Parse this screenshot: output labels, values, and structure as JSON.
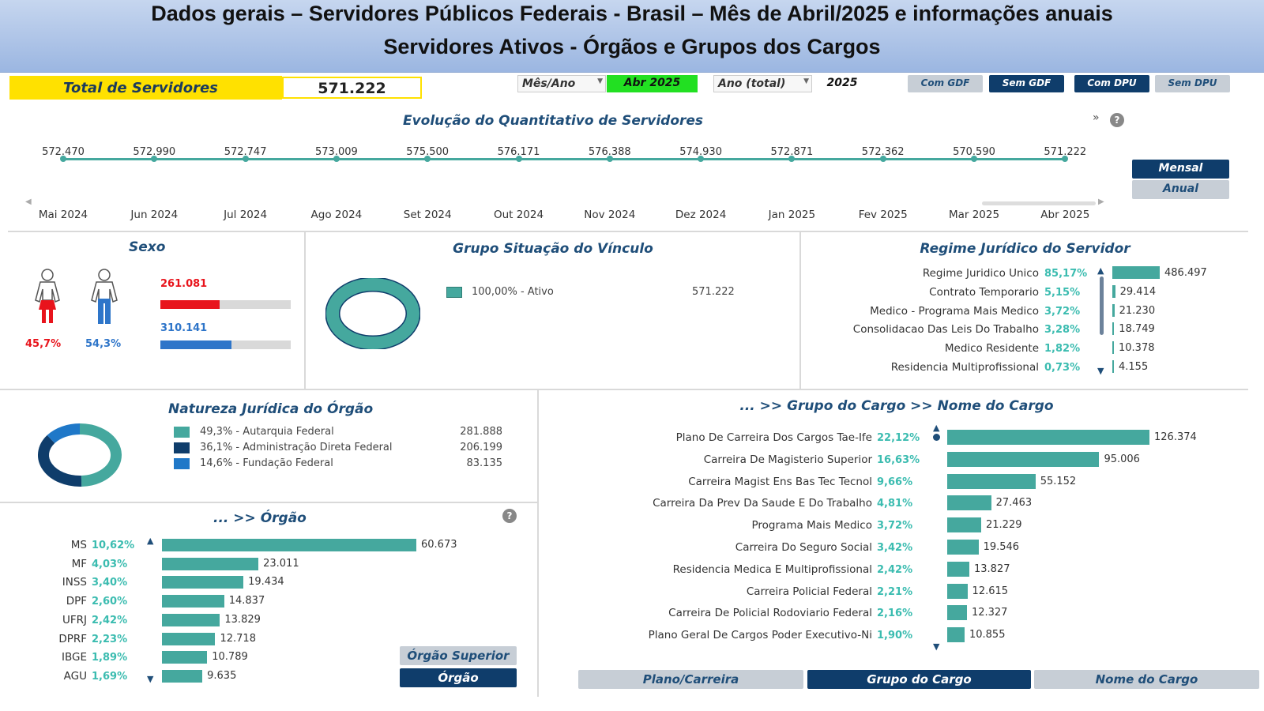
{
  "header": {
    "title1": "Dados gerais – Servidores Públicos Federais - Brasil – Mês de Abril/2025 e informações anuais",
    "title2": "Servidores Ativos - Órgãos e Grupos dos Cargos"
  },
  "total": {
    "label": "Total de Servidores",
    "value": "571.222"
  },
  "filters": {
    "mes_ano_label": "Mês/Ano",
    "mes_ano_value": "Abr 2025",
    "ano_label": "Ano (total)",
    "ano_value": "2025"
  },
  "toggles": {
    "com_gdf": "Com GDF",
    "sem_gdf": "Sem GDF",
    "com_dpu": "Com DPU",
    "sem_dpu": "Sem DPU"
  },
  "evolucao": {
    "title": "Evolução do Quantitativo de Servidores",
    "more_icon": "»",
    "help_icon": "?",
    "mensal": "Mensal",
    "anual": "Anual",
    "months": [
      "Mai 2024",
      "Jun 2024",
      "Jul 2024",
      "Ago 2024",
      "Set 2024",
      "Out 2024",
      "Nov 2024",
      "Dez 2024",
      "Jan 2025",
      "Fev 2025",
      "Mar 2025",
      "Abr 2025"
    ],
    "values": [
      "572.470",
      "572.990",
      "572.747",
      "573.009",
      "575.500",
      "576.171",
      "576.388",
      "574.930",
      "572.871",
      "572.362",
      "570.590",
      "571.222"
    ]
  },
  "sexo": {
    "title": "Sexo",
    "female_value": "261.081",
    "male_value": "310.141",
    "female_pct": "45,7%",
    "male_pct": "54,3%",
    "female_fill": 0.457,
    "male_fill": 0.543,
    "female_color": "#e8141c",
    "male_color": "#2e75c9"
  },
  "vinculo": {
    "title": "Grupo Situação do Vínculo",
    "legend": "100,00% - Ativo",
    "value": "571.222"
  },
  "regime": {
    "title": "Regime Jurídico do Servidor",
    "rows": [
      {
        "label": "Regime Juridico Unico",
        "pct": "85,17%",
        "value": "486.497",
        "num": 486497
      },
      {
        "label": "Contrato Temporario",
        "pct": "5,15%",
        "value": "29.414",
        "num": 29414
      },
      {
        "label": "Medico - Programa Mais Medico",
        "pct": "3,72%",
        "value": "21.230",
        "num": 21230
      },
      {
        "label": "Consolidacao Das Leis Do Trabalho",
        "pct": "3,28%",
        "value": "18.749",
        "num": 18749
      },
      {
        "label": "Medico Residente",
        "pct": "1,82%",
        "value": "10.378",
        "num": 10378
      },
      {
        "label": "Residencia Multiprofissional",
        "pct": "0,73%",
        "value": "4.155",
        "num": 4155
      }
    ]
  },
  "natureza": {
    "title": "Natureza Jurídica do Órgão",
    "rows": [
      {
        "label": "49,3% - Autarquia Federal",
        "value": "281.888",
        "color": "#45a89e",
        "share": 0.493
      },
      {
        "label": "36,1% - Administração Direta Federal",
        "value": "206.199",
        "color": "#0f3d6b",
        "share": 0.361
      },
      {
        "label": "14,6% - Fundação Federal",
        "value": "83.135",
        "color": "#1f78c8",
        "share": 0.146
      }
    ]
  },
  "orgao": {
    "title": "... >> Órgão",
    "help_icon": "?",
    "btn_superior": "Órgão Superior",
    "btn_orgao": "Órgão",
    "rows": [
      {
        "label": "MS",
        "pct": "10,62%",
        "value": "60.673",
        "num": 60673
      },
      {
        "label": "MF",
        "pct": "4,03%",
        "value": "23.011",
        "num": 23011
      },
      {
        "label": "INSS",
        "pct": "3,40%",
        "value": "19.434",
        "num": 19434
      },
      {
        "label": "DPF",
        "pct": "2,60%",
        "value": "14.837",
        "num": 14837
      },
      {
        "label": "UFRJ",
        "pct": "2,42%",
        "value": "13.829",
        "num": 13829
      },
      {
        "label": "DPRF",
        "pct": "2,23%",
        "value": "12.718",
        "num": 12718
      },
      {
        "label": "IBGE",
        "pct": "1,89%",
        "value": "10.789",
        "num": 10789
      },
      {
        "label": "AGU",
        "pct": "1,69%",
        "value": "9.635",
        "num": 9635
      }
    ]
  },
  "cargo": {
    "title": "... >> Grupo do Cargo >> Nome do Cargo",
    "btn_plano": "Plano/Carreira",
    "btn_grupo": "Grupo do Cargo",
    "btn_nome": "Nome do Cargo",
    "rows": [
      {
        "label": "Plano De Carreira Dos Cargos Tae-Ife",
        "pct": "22,12%",
        "value": "126.374",
        "num": 126374
      },
      {
        "label": "Carreira De Magisterio Superior",
        "pct": "16,63%",
        "value": "95.006",
        "num": 95006
      },
      {
        "label": "Carreira Magist Ens Bas Tec Tecnol",
        "pct": "9,66%",
        "value": "55.152",
        "num": 55152
      },
      {
        "label": "Carreira Da Prev Da Saude E Do Trabalho",
        "pct": "4,81%",
        "value": "27.463",
        "num": 27463
      },
      {
        "label": "Programa Mais Medico",
        "pct": "3,72%",
        "value": "21.229",
        "num": 21229
      },
      {
        "label": "Carreira Do Seguro Social",
        "pct": "3,42%",
        "value": "19.546",
        "num": 19546
      },
      {
        "label": "Residencia Medica E Multiprofissional",
        "pct": "2,42%",
        "value": "13.827",
        "num": 13827
      },
      {
        "label": "Carreira Policial Federal",
        "pct": "2,21%",
        "value": "12.615",
        "num": 12615
      },
      {
        "label": "Carreira De Policial Rodoviario Federal",
        "pct": "2,16%",
        "value": "12.327",
        "num": 12327
      },
      {
        "label": "Plano Geral De Cargos Poder Executivo-Ni",
        "pct": "1,90%",
        "value": "10.855",
        "num": 10855
      }
    ]
  }
}
